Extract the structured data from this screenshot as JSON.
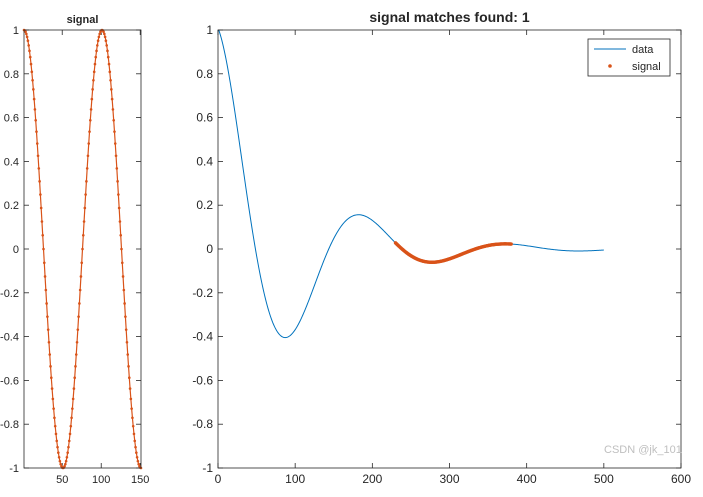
{
  "watermark": "CSDN @jk_101",
  "colors": {
    "data_line": "#0072BD",
    "signal_marker": "#D95319",
    "axes": "#262626",
    "background": "#FFFFFF"
  },
  "chart_data": [
    {
      "type": "line",
      "title": "signal",
      "xlim": [
        1,
        151
      ],
      "ylim": [
        -1,
        1
      ],
      "grid": false,
      "xticks": [
        50,
        100,
        150
      ],
      "xtick_labels": [
        "50",
        "100",
        "150"
      ],
      "yticks": [
        -1,
        -0.8,
        -0.6,
        -0.4,
        -0.2,
        0,
        0.2,
        0.4,
        0.6,
        0.8,
        1
      ],
      "ytick_labels": [
        "-1",
        "-0.8",
        "-0.6",
        "-0.4",
        "-0.2",
        "0",
        "0.2",
        "0.4",
        "0.6",
        "0.8",
        "1"
      ],
      "series": [
        {
          "marker": "dot",
          "x_start": 1,
          "x_end": 151,
          "formula": "cos(2*pi*(x-1)/100)"
        }
      ]
    },
    {
      "type": "line",
      "title": "signal matches found: 1",
      "xlim": [
        0,
        600
      ],
      "ylim": [
        -1,
        1
      ],
      "grid": false,
      "legend_position": "top-right",
      "xticks": [
        0,
        100,
        200,
        300,
        400,
        500,
        600
      ],
      "xtick_labels": [
        "0",
        "100",
        "200",
        "300",
        "400",
        "500",
        "600"
      ],
      "yticks": [
        -1,
        -0.8,
        -0.6,
        -0.4,
        -0.2,
        0,
        0.2,
        0.4,
        0.6,
        0.8,
        1
      ],
      "ytick_labels": [
        "-1",
        "-0.8",
        "-0.6",
        "-0.4",
        "-0.2",
        "0",
        "0.2",
        "0.4",
        "0.6",
        "0.8",
        "1"
      ],
      "series": [
        {
          "name": "data",
          "style": "line",
          "x_start": 1,
          "x_end": 500,
          "formula": "exp(-(x-1)/100)*cos(2*pi*(x-1)/190)"
        },
        {
          "name": "signal",
          "style": "dots",
          "x_start": 230,
          "x_end": 380,
          "formula": "exp(-(x-1)/100)*cos(2*pi*(x-1)/190)"
        }
      ]
    }
  ]
}
